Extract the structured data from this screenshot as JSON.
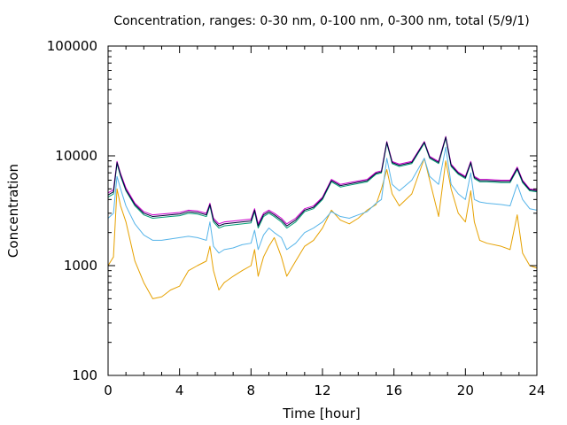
{
  "chart_data": {
    "type": "line",
    "title": "Concentration, ranges: 0-30 nm, 0-100 nm, 0-300 nm, total (5/9/1)",
    "xlabel": "Time [hour]",
    "ylabel": "Concentration",
    "xlim": [
      0,
      24
    ],
    "ylim": [
      100,
      100000
    ],
    "yscale": "log",
    "grid": false,
    "legend": "none",
    "x_ticks": [
      0,
      4,
      8,
      12,
      16,
      20,
      24
    ],
    "x_tick_labels": [
      "0",
      "4",
      "8",
      "12",
      "16",
      "20",
      "24"
    ],
    "y_ticks": [
      100,
      1000,
      10000,
      100000
    ],
    "y_tick_labels": [
      "100",
      "1000",
      "10000",
      "100000"
    ],
    "x": [
      0,
      0.3,
      0.5,
      0.7,
      1,
      1.5,
      2,
      2.5,
      3,
      3.5,
      4,
      4.5,
      5,
      5.5,
      5.7,
      5.9,
      6.2,
      6.5,
      7,
      7.5,
      8,
      8.2,
      8.4,
      8.7,
      9,
      9.3,
      9.7,
      10,
      10.5,
      11,
      11.5,
      12,
      12.5,
      13,
      13.5,
      14,
      14.5,
      15,
      15.3,
      15.6,
      15.9,
      16.3,
      17,
      17.7,
      18,
      18.5,
      18.9,
      19.2,
      19.6,
      20,
      20.3,
      20.5,
      20.8,
      21.2,
      22,
      22.5,
      22.9,
      23.2,
      23.6,
      24
    ],
    "series": [
      {
        "color": "#e6a100",
        "values": [
          1000,
          1200,
          5000,
          3500,
          2500,
          1100,
          700,
          500,
          520,
          600,
          650,
          900,
          1000,
          1100,
          1500,
          900,
          600,
          700,
          800,
          900,
          1000,
          1400,
          800,
          1200,
          1500,
          1800,
          1200,
          800,
          1100,
          1500,
          1700,
          2200,
          3200,
          2600,
          2400,
          2700,
          3200,
          3600,
          5000,
          7500,
          4500,
          3500,
          4500,
          9500,
          6000,
          2800,
          9000,
          5000,
          3000,
          2500,
          4800,
          2500,
          1700,
          1600,
          1500,
          1400,
          2900,
          1300,
          1000,
          950
        ]
      },
      {
        "color": "#56b4e9",
        "values": [
          2700,
          3000,
          6500,
          5000,
          3500,
          2400,
          1900,
          1700,
          1700,
          1750,
          1800,
          1850,
          1800,
          1700,
          2500,
          1500,
          1300,
          1400,
          1450,
          1550,
          1600,
          2100,
          1400,
          1900,
          2200,
          2000,
          1800,
          1400,
          1600,
          2000,
          2200,
          2500,
          3100,
          2800,
          2700,
          2900,
          3100,
          3700,
          4000,
          9500,
          5500,
          4800,
          6000,
          9500,
          6500,
          5500,
          12000,
          5500,
          4500,
          4000,
          7000,
          4000,
          3800,
          3700,
          3600,
          3500,
          5500,
          4000,
          3300,
          3200
        ]
      },
      {
        "color": "#009e73",
        "values": [
          4200,
          4500,
          8500,
          6500,
          4800,
          3500,
          2900,
          2700,
          2750,
          2800,
          2850,
          3000,
          2950,
          2800,
          3500,
          2500,
          2200,
          2300,
          2350,
          2400,
          2450,
          3100,
          2200,
          2800,
          3000,
          2800,
          2500,
          2200,
          2500,
          3100,
          3300,
          4000,
          5800,
          5200,
          5400,
          5600,
          5800,
          6800,
          7000,
          13000,
          8500,
          8000,
          8500,
          13000,
          9500,
          8500,
          14500,
          8000,
          6800,
          6200,
          8500,
          6200,
          5800,
          5800,
          5700,
          5700,
          7500,
          5700,
          4800,
          4700
        ]
      },
      {
        "color": "#cc00cc",
        "values": [
          4600,
          4900,
          8900,
          6900,
          5100,
          3700,
          3100,
          2900,
          2950,
          3000,
          3050,
          3200,
          3150,
          3000,
          3700,
          2700,
          2400,
          2500,
          2550,
          2600,
          2650,
          3300,
          2400,
          3000,
          3200,
          3000,
          2700,
          2400,
          2700,
          3300,
          3500,
          4200,
          6100,
          5500,
          5700,
          5900,
          6100,
          7100,
          7300,
          13500,
          8900,
          8400,
          8900,
          13500,
          9900,
          8900,
          15000,
          8400,
          7100,
          6500,
          8900,
          6500,
          6100,
          6100,
          6000,
          6000,
          7900,
          6000,
          5000,
          4900
        ]
      },
      {
        "color": "#00003a",
        "values": [
          4400,
          4700,
          8700,
          6700,
          4900,
          3600,
          3000,
          2800,
          2850,
          2900,
          2950,
          3100,
          3050,
          2900,
          3600,
          2600,
          2300,
          2400,
          2450,
          2500,
          2550,
          3200,
          2300,
          2900,
          3100,
          2900,
          2600,
          2300,
          2600,
          3200,
          3400,
          4100,
          5950,
          5350,
          5550,
          5750,
          5950,
          6950,
          7150,
          13300,
          8700,
          8200,
          8700,
          13300,
          9700,
          8700,
          14800,
          8200,
          6950,
          6350,
          8700,
          6350,
          5950,
          5950,
          5850,
          5850,
          7700,
          5850,
          4900,
          4800
        ]
      }
    ]
  }
}
